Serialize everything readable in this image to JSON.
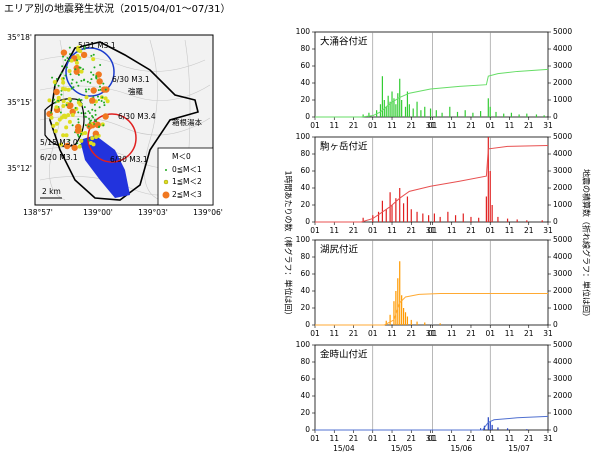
{
  "title": "エリア別の地震発生状況（2015/04/01～07/31）",
  "map": {
    "lat_labels": [
      "35°18'",
      "35°15'",
      "35°12'"
    ],
    "lon_labels": [
      "138°57'",
      "139°00'",
      "139°03'",
      "139°06'"
    ],
    "annotations": [
      "5/31 M3.1",
      "6/30 M3.1",
      "6/30 M3.4",
      "5/15 M3.0",
      "6/20 M3.1",
      "6/30 M3.1",
      "強羅",
      "箱根湯本"
    ],
    "scale": "2 km",
    "legend": [
      "M＜0",
      "0≦M＜1",
      "1≦M＜2",
      "2≦M＜3"
    ]
  },
  "y_label": "1時間あたりの数（棒グラフ：単位は回）",
  "y2_label": "地震の積算数（折れ線グラフ：単位は回）",
  "chart_data": [
    {
      "type": "bar",
      "title": "大涌谷付近",
      "xlim": [
        "2015-04-01",
        "2015-07-31"
      ],
      "xticks": [
        {
          "value": "2015-04-01",
          "label": "01"
        },
        {
          "value": "2015-04-11",
          "label": "11"
        },
        {
          "value": "2015-04-21",
          "label": "21"
        },
        {
          "value": "2015-05-01",
          "label": "01"
        },
        {
          "value": "2015-05-11",
          "label": "11"
        },
        {
          "value": "2015-05-21",
          "label": "21"
        },
        {
          "value": "2015-05-31",
          "label": "31"
        },
        {
          "value": "2015-06-01",
          "label": "01"
        },
        {
          "value": "2015-06-11",
          "label": "11"
        },
        {
          "value": "2015-06-21",
          "label": "21"
        },
        {
          "value": "2015-07-01",
          "label": "01"
        },
        {
          "value": "2015-07-11",
          "label": "11"
        },
        {
          "value": "2015-07-21",
          "label": "21"
        },
        {
          "value": "2015-07-31",
          "label": "31"
        }
      ],
      "ylim": [
        0,
        100
      ],
      "yticks": [
        0,
        20,
        40,
        60,
        80,
        100
      ],
      "y2lim": [
        0,
        5000
      ],
      "y2ticks": [
        0,
        1000,
        2000,
        3000,
        4000,
        5000
      ],
      "series": [
        {
          "type": "bar",
          "color": "#33cc33",
          "x": [
            "2015-04-26",
            "2015-04-29",
            "2015-05-03",
            "2015-05-05",
            "2015-05-06",
            "2015-05-07",
            "2015-05-08",
            "2015-05-09",
            "2015-05-10",
            "2015-05-11",
            "2015-05-12",
            "2015-05-13",
            "2015-05-14",
            "2015-05-15",
            "2015-05-16",
            "2015-05-18",
            "2015-05-19",
            "2015-05-20",
            "2015-05-22",
            "2015-05-24",
            "2015-05-26",
            "2015-05-28",
            "2015-05-31",
            "2015-06-03",
            "2015-06-06",
            "2015-06-10",
            "2015-06-14",
            "2015-06-18",
            "2015-06-22",
            "2015-06-26",
            "2015-06-30",
            "2015-07-01",
            "2015-07-04",
            "2015-07-08",
            "2015-07-12",
            "2015-07-16",
            "2015-07-20",
            "2015-07-25",
            "2015-07-29"
          ],
          "values": [
            3,
            5,
            8,
            15,
            48,
            20,
            12,
            25,
            18,
            30,
            22,
            15,
            28,
            45,
            20,
            12,
            30,
            15,
            10,
            18,
            8,
            12,
            10,
            8,
            5,
            12,
            6,
            8,
            5,
            7,
            22,
            12,
            6,
            4,
            5,
            3,
            4,
            3,
            2
          ]
        },
        {
          "type": "line",
          "axis": "y2",
          "color": "#66dd66",
          "x": [
            "2015-04-01",
            "2015-04-25",
            "2015-05-01",
            "2015-05-05",
            "2015-05-10",
            "2015-05-15",
            "2015-05-20",
            "2015-05-31",
            "2015-06-15",
            "2015-06-29",
            "2015-06-30",
            "2015-07-05",
            "2015-07-15",
            "2015-07-31"
          ],
          "values": [
            0,
            0,
            80,
            300,
            800,
            1150,
            1400,
            1650,
            1800,
            1900,
            2400,
            2550,
            2680,
            2800
          ]
        }
      ]
    },
    {
      "type": "bar",
      "title": "駒ヶ岳付近",
      "xlim": [
        "2015-04-01",
        "2015-07-31"
      ],
      "xticks": [
        {
          "value": "2015-04-01",
          "label": "01"
        },
        {
          "value": "2015-04-11",
          "label": "11"
        },
        {
          "value": "2015-04-21",
          "label": "21"
        },
        {
          "value": "2015-05-01",
          "label": "01"
        },
        {
          "value": "2015-05-11",
          "label": "11"
        },
        {
          "value": "2015-05-21",
          "label": "21"
        },
        {
          "value": "2015-05-31",
          "label": "31"
        },
        {
          "value": "2015-06-01",
          "label": "01"
        },
        {
          "value": "2015-06-11",
          "label": "11"
        },
        {
          "value": "2015-06-21",
          "label": "21"
        },
        {
          "value": "2015-07-01",
          "label": "01"
        },
        {
          "value": "2015-07-11",
          "label": "11"
        },
        {
          "value": "2015-07-21",
          "label": "21"
        },
        {
          "value": "2015-07-31",
          "label": "31"
        }
      ],
      "ylim": [
        0,
        100
      ],
      "yticks": [
        0,
        20,
        40,
        60,
        80,
        100
      ],
      "y2lim": [
        0,
        5000
      ],
      "y2ticks": [
        0,
        1000,
        2000,
        3000,
        4000,
        5000
      ],
      "series": [
        {
          "type": "bar",
          "color": "#e02020",
          "x": [
            "2015-04-26",
            "2015-05-01",
            "2015-05-04",
            "2015-05-06",
            "2015-05-08",
            "2015-05-10",
            "2015-05-11",
            "2015-05-13",
            "2015-05-15",
            "2015-05-17",
            "2015-05-19",
            "2015-05-21",
            "2015-05-24",
            "2015-05-27",
            "2015-05-30",
            "2015-06-02",
            "2015-06-05",
            "2015-06-09",
            "2015-06-13",
            "2015-06-17",
            "2015-06-21",
            "2015-06-25",
            "2015-06-29",
            "2015-06-30",
            "2015-07-01",
            "2015-07-02",
            "2015-07-05",
            "2015-07-10",
            "2015-07-15",
            "2015-07-20",
            "2015-07-28"
          ],
          "values": [
            5,
            8,
            12,
            25,
            15,
            35,
            20,
            28,
            40,
            22,
            30,
            15,
            12,
            10,
            8,
            10,
            6,
            12,
            8,
            10,
            6,
            5,
            30,
            100,
            60,
            20,
            6,
            4,
            3,
            2,
            2
          ]
        },
        {
          "type": "line",
          "axis": "y2",
          "color": "#e85050",
          "x": [
            "2015-04-01",
            "2015-04-25",
            "2015-05-01",
            "2015-05-10",
            "2015-05-15",
            "2015-05-20",
            "2015-05-31",
            "2015-06-15",
            "2015-06-29",
            "2015-06-30",
            "2015-07-10",
            "2015-07-31"
          ],
          "values": [
            0,
            0,
            200,
            900,
            1400,
            1800,
            2100,
            2400,
            2700,
            4300,
            4450,
            4500
          ]
        }
      ]
    },
    {
      "type": "bar",
      "title": "湖尻付近",
      "xlim": [
        "2015-04-01",
        "2015-07-31"
      ],
      "xticks": [
        {
          "value": "2015-04-01",
          "label": "01"
        },
        {
          "value": "2015-04-11",
          "label": "11"
        },
        {
          "value": "2015-04-21",
          "label": "21"
        },
        {
          "value": "2015-05-01",
          "label": "01"
        },
        {
          "value": "2015-05-11",
          "label": "11"
        },
        {
          "value": "2015-05-21",
          "label": "21"
        },
        {
          "value": "2015-05-31",
          "label": "31"
        },
        {
          "value": "2015-06-01",
          "label": "01"
        },
        {
          "value": "2015-06-11",
          "label": "11"
        },
        {
          "value": "2015-06-21",
          "label": "21"
        },
        {
          "value": "2015-07-01",
          "label": "01"
        },
        {
          "value": "2015-07-11",
          "label": "11"
        },
        {
          "value": "2015-07-21",
          "label": "21"
        },
        {
          "value": "2015-07-31",
          "label": "31"
        }
      ],
      "ylim": [
        0,
        100
      ],
      "yticks": [
        0,
        20,
        40,
        60,
        80,
        100
      ],
      "y2lim": [
        0,
        5000
      ],
      "y2ticks": [
        0,
        1000,
        2000,
        3000,
        4000,
        5000
      ],
      "series": [
        {
          "type": "bar",
          "color": "#ff9900",
          "x": [
            "2015-05-08",
            "2015-05-10",
            "2015-05-12",
            "2015-05-13",
            "2015-05-14",
            "2015-05-15",
            "2015-05-16",
            "2015-05-17",
            "2015-05-18",
            "2015-05-19",
            "2015-05-21",
            "2015-05-24",
            "2015-05-28",
            "2015-06-05"
          ],
          "values": [
            5,
            12,
            28,
            40,
            55,
            75,
            35,
            20,
            15,
            10,
            6,
            4,
            3,
            2
          ]
        },
        {
          "type": "line",
          "axis": "y2",
          "color": "#ffaa33",
          "x": [
            "2015-04-01",
            "2015-05-07",
            "2015-05-12",
            "2015-05-15",
            "2015-05-18",
            "2015-05-25",
            "2015-06-05",
            "2015-07-31"
          ],
          "values": [
            0,
            0,
            300,
            1300,
            1650,
            1800,
            1850,
            1850
          ]
        }
      ]
    },
    {
      "type": "bar",
      "title": "金時山付近",
      "xlim": [
        "2015-04-01",
        "2015-07-31"
      ],
      "xticks": [
        {
          "value": "2015-04-01",
          "label": "01"
        },
        {
          "value": "2015-04-11",
          "label": "11"
        },
        {
          "value": "2015-04-21",
          "label": "21"
        },
        {
          "value": "2015-05-01",
          "label": "01"
        },
        {
          "value": "2015-05-11",
          "label": "11"
        },
        {
          "value": "2015-05-21",
          "label": "21"
        },
        {
          "value": "2015-05-31",
          "label": "31"
        },
        {
          "value": "2015-06-01",
          "label": "01"
        },
        {
          "value": "2015-06-11",
          "label": "11"
        },
        {
          "value": "2015-06-21",
          "label": "21"
        },
        {
          "value": "2015-07-01",
          "label": "01"
        },
        {
          "value": "2015-07-11",
          "label": "11"
        },
        {
          "value": "2015-07-21",
          "label": "21"
        },
        {
          "value": "2015-07-31",
          "label": "31"
        }
      ],
      "xticks2": [
        {
          "value": "2015-04-16",
          "label": "15/04"
        },
        {
          "value": "2015-05-16",
          "label": "15/05"
        },
        {
          "value": "2015-06-16",
          "label": "15/06"
        },
        {
          "value": "2015-07-16",
          "label": "15/07"
        }
      ],
      "ylim": [
        0,
        100
      ],
      "yticks": [
        0,
        20,
        40,
        60,
        80,
        100
      ],
      "y2lim": [
        0,
        5000
      ],
      "y2ticks": [
        0,
        1000,
        2000,
        3000,
        4000,
        5000
      ],
      "series": [
        {
          "type": "bar",
          "color": "#2040c0",
          "x": [
            "2015-06-26",
            "2015-06-28",
            "2015-06-30",
            "2015-07-01",
            "2015-07-02",
            "2015-07-05",
            "2015-07-10",
            "2015-07-20"
          ],
          "values": [
            2,
            5,
            15,
            10,
            6,
            3,
            2,
            1
          ]
        },
        {
          "type": "line",
          "axis": "y2",
          "color": "#5070d0",
          "x": [
            "2015-04-01",
            "2015-06-27",
            "2015-06-30",
            "2015-07-03",
            "2015-07-15",
            "2015-07-31"
          ],
          "values": [
            0,
            0,
            450,
            600,
            720,
            800
          ]
        }
      ]
    }
  ]
}
